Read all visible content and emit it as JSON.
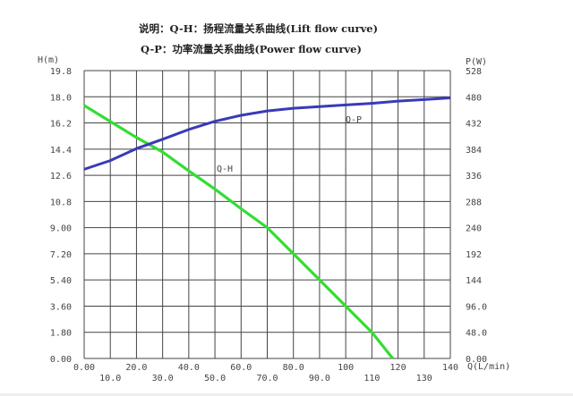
{
  "chart_data": {
    "type": "line",
    "title_lines": [
      "说明：Q-H：扬程流量关系曲线(Lift flow curve)",
      "Q-P：功率流量关系曲线(Power flow curve)"
    ],
    "xlabel": "Q(L/min)",
    "ylabel_left": "H(m)",
    "ylabel_right": "P(W)",
    "xlim": [
      0,
      140
    ],
    "ylim_left": [
      0,
      19.8
    ],
    "ylim_right": [
      0,
      528
    ],
    "grid": true,
    "x_ticks": [
      "0.00",
      "10.0",
      "20.0",
      "30.0",
      "40.0",
      "50.0",
      "60.0",
      "70.0",
      "80.0",
      "90.0",
      "100",
      "110",
      "120",
      "130",
      "140"
    ],
    "y_left_ticks": [
      "0.00",
      "1.80",
      "3.60",
      "5.40",
      "7.20",
      "9.00",
      "10.8",
      "12.6",
      "14.4",
      "16.2",
      "18.0",
      "19.8"
    ],
    "y_right_ticks": [
      "0.00",
      "48.0",
      "96.0",
      "144",
      "192",
      "240",
      "288",
      "336",
      "384",
      "432",
      "480",
      "528"
    ],
    "series": [
      {
        "name": "Q-H",
        "axis": "left",
        "color": "#33dd33",
        "x": [
          0,
          10,
          20,
          30,
          40,
          50,
          60,
          70,
          80,
          90,
          100,
          110,
          118
        ],
        "y": [
          17.4,
          16.3,
          15.2,
          14.2,
          12.9,
          11.65,
          10.3,
          9.0,
          7.2,
          5.4,
          3.6,
          1.8,
          0
        ]
      },
      {
        "name": "Q-P",
        "axis": "right",
        "color": "#3a3ab8",
        "x": [
          0,
          10,
          20,
          30,
          40,
          50,
          60,
          70,
          80,
          90,
          100,
          110,
          120,
          130,
          140
        ],
        "y": [
          347,
          363,
          385,
          402,
          420,
          435,
          446,
          454,
          459,
          462,
          465,
          468,
          472,
          475,
          478
        ]
      }
    ]
  }
}
